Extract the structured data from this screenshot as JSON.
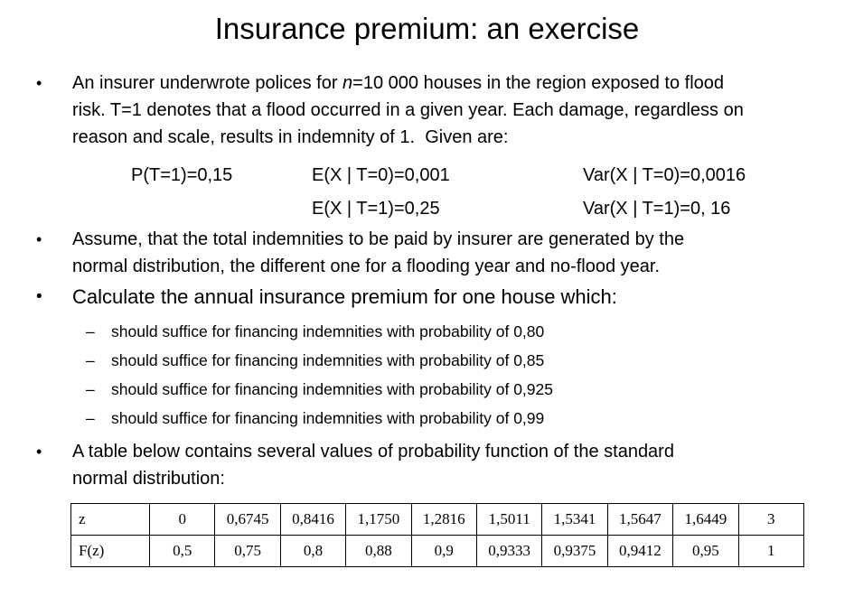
{
  "slide": {
    "title": "Insurance premium: an exercise",
    "bullet1": {
      "line1_pre": "An insurer underwrote polices for ",
      "line1_italic": "n",
      "line1_post": "=10 000 houses in the region exposed to flood",
      "line2": "risk. T=1 denotes that a flood occurred in a given year. Each damage, regardless on",
      "line3": "reason and scale, results in indemnity of 1.  Given are:"
    },
    "formulas": {
      "prob_flood": "P(T=1)=0,15",
      "mean_no_flood": "E(X | T=0)=0,001",
      "mean_flood": "E(X | T=1)=0,25",
      "var_no_flood": "Var(X | T=0)=0,0016",
      "var_flood": "Var(X | T=1)=0, 16"
    },
    "bullet2": {
      "line1": "Assume, that the total indemnities to be paid by insurer are generated by the",
      "line2": "normal distribution, the different one for a flooding year and no-flood year."
    },
    "bullet3": "Calculate the annual insurance premium for one house which:",
    "sub_bullets": [
      "should suffice for financing indemnities with probability of 0,80",
      "should suffice for financing indemnities with probability of 0,85",
      "should suffice for financing indemnities with probability of 0,925",
      "should suffice for financing indemnities with probability of 0,99"
    ],
    "bullet4": {
      "line1": "A table below contains several values of probability function of the standard",
      "line2": "normal distribution:"
    },
    "glyphs": {
      "level1_bullet": "•",
      "level2_bullet": "–"
    },
    "normal_table": {
      "row_z": {
        "label": "z",
        "values": [
          "0",
          "0,6745",
          "0,8416",
          "1,1750",
          "1,2816",
          "1,5011",
          "1,5341",
          "1,5647",
          "1,6449",
          "3"
        ]
      },
      "row_F": {
        "label": "F(z)",
        "values": [
          "0,5",
          "0,75",
          "0,8",
          "0,88",
          "0,9",
          "0,9333",
          "0,9375",
          "0,9412",
          "0,95",
          "1"
        ]
      }
    },
    "colors": {
      "text": "#000000",
      "background": "#ffffff",
      "table_border": "#000000"
    }
  }
}
